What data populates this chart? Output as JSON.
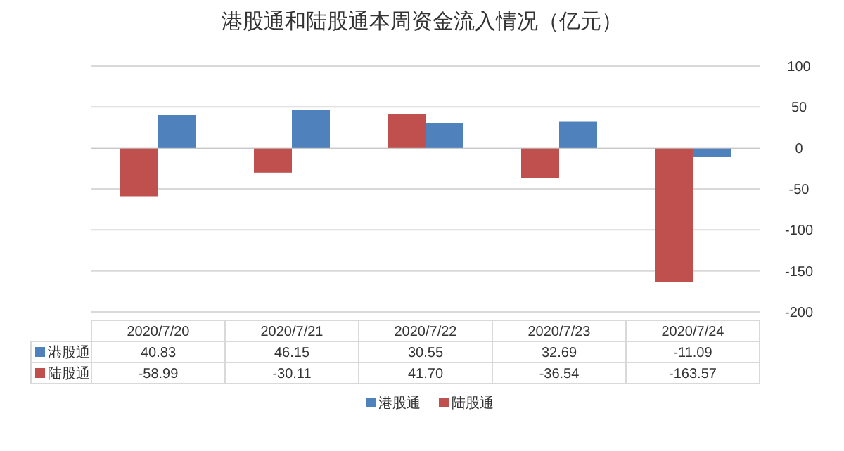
{
  "chart_data": {
    "type": "bar",
    "title": "港股通和陆股通本周资金流入情况（亿元）",
    "categories": [
      "2020/7/20",
      "2020/7/21",
      "2020/7/22",
      "2020/7/23",
      "2020/7/24"
    ],
    "series": [
      {
        "name": "港股通",
        "color": "#4f81bd",
        "values": [
          40.83,
          46.15,
          30.55,
          32.69,
          -11.09
        ],
        "value_labels": [
          "40.83",
          "46.15",
          "30.55",
          "32.69",
          "-11.09"
        ]
      },
      {
        "name": "陆股通",
        "color": "#c0504d",
        "values": [
          -58.99,
          -30.11,
          41.7,
          -36.54,
          -163.57
        ],
        "value_labels": [
          "-58.99",
          "-30.11",
          "41.70",
          "-36.54",
          "-163.57"
        ]
      }
    ],
    "ylim": [
      -200,
      100
    ],
    "yticks": [
      -200,
      -150,
      -100,
      -50,
      0,
      50,
      100
    ],
    "grid": "y",
    "legend": "bottom"
  }
}
